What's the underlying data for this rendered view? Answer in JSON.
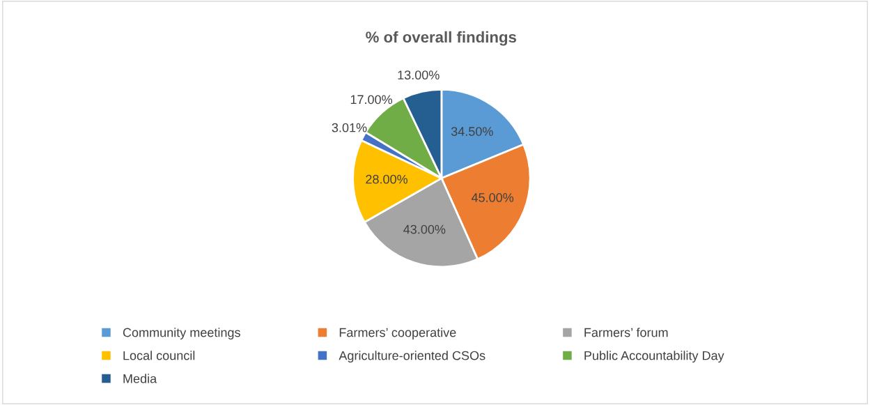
{
  "chart_data": {
    "type": "pie",
    "title": "% of overall findings",
    "categories": [
      "Community meetings",
      "Farmers’ cooperative",
      "Farmers’ forum",
      "Local council",
      "Agriculture-oriented CSOs",
      "Public Accountability Day",
      "Media"
    ],
    "values": [
      34.5,
      45,
      43,
      28,
      3.01,
      17,
      13
    ],
    "value_labels": [
      "34.50%",
      "45.00%",
      "43.00%",
      "28.00%",
      "3.01%",
      "17.00%",
      "13.00%"
    ],
    "colors": [
      "#5b9bd5",
      "#ed7d31",
      "#a5a5a5",
      "#ffc000",
      "#4472c4",
      "#70ad47",
      "#255e91"
    ],
    "legend": "bottom"
  }
}
